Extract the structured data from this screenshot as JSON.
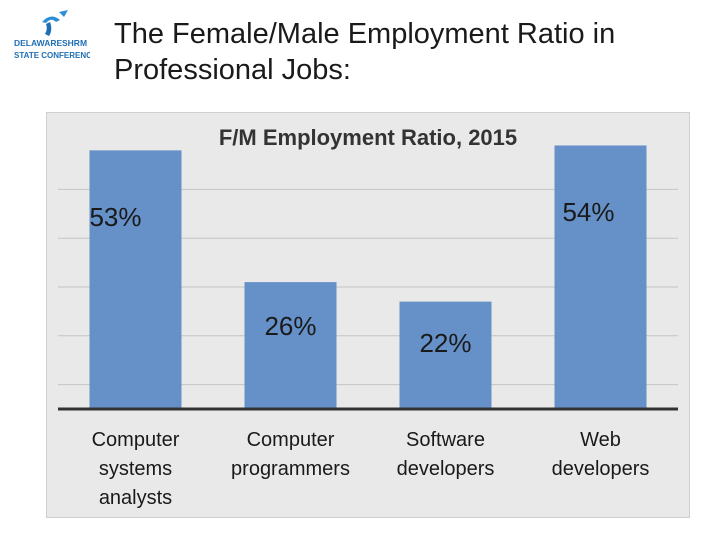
{
  "slide": {
    "title_line1": "The Female/Male Employment Ratio in",
    "title_line2": "Professional Jobs:"
  },
  "logo": {
    "line1": "DELAWARE",
    "line2": "SHRM",
    "line3": "STATE CONFERENCE",
    "icon": "person-figure-icon",
    "color": "#1f6fb5"
  },
  "chart_data": {
    "type": "bar",
    "title": "F/M Employment Ratio, 2015",
    "categories": [
      [
        "Computer",
        "systems",
        "analysts"
      ],
      [
        "Computer",
        "programmers"
      ],
      [
        "Software",
        "developers"
      ],
      [
        "Web",
        "developers"
      ]
    ],
    "values": [
      53,
      26,
      22,
      54
    ],
    "data_labels": [
      "53%",
      "26%",
      "22%",
      "54%"
    ],
    "ylim": [
      0,
      55
    ],
    "grid": true,
    "legend": "none",
    "bar_color": "#6590c8",
    "background_color": "#e9e9e9"
  }
}
